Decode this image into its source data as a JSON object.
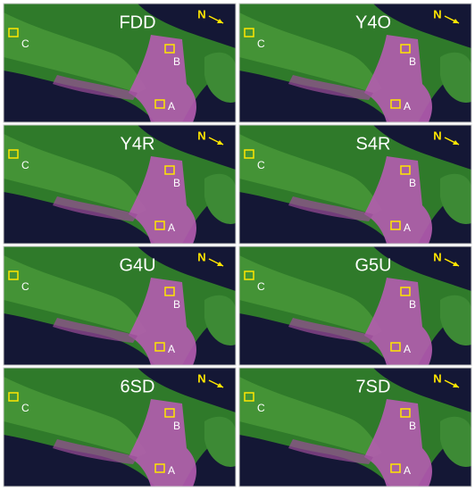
{
  "panels": [
    {
      "title": "FDD",
      "north": "N",
      "regions": [
        "C",
        "B",
        "A"
      ]
    },
    {
      "title": "Y4O",
      "north": "N",
      "regions": [
        "C",
        "B",
        "A"
      ]
    },
    {
      "title": "Y4R",
      "north": "N",
      "regions": [
        "C",
        "B",
        "A"
      ]
    },
    {
      "title": "S4R",
      "north": "N",
      "regions": [
        "C",
        "B",
        "A"
      ]
    },
    {
      "title": "G4U",
      "north": "N",
      "regions": [
        "C",
        "B",
        "A"
      ]
    },
    {
      "title": "G5U",
      "north": "N",
      "regions": [
        "C",
        "B",
        "A"
      ]
    },
    {
      "title": "6SD",
      "north": "N",
      "regions": [
        "C",
        "B",
        "A"
      ]
    },
    {
      "title": "7SD",
      "north": "N",
      "regions": [
        "C",
        "B",
        "A"
      ]
    }
  ]
}
